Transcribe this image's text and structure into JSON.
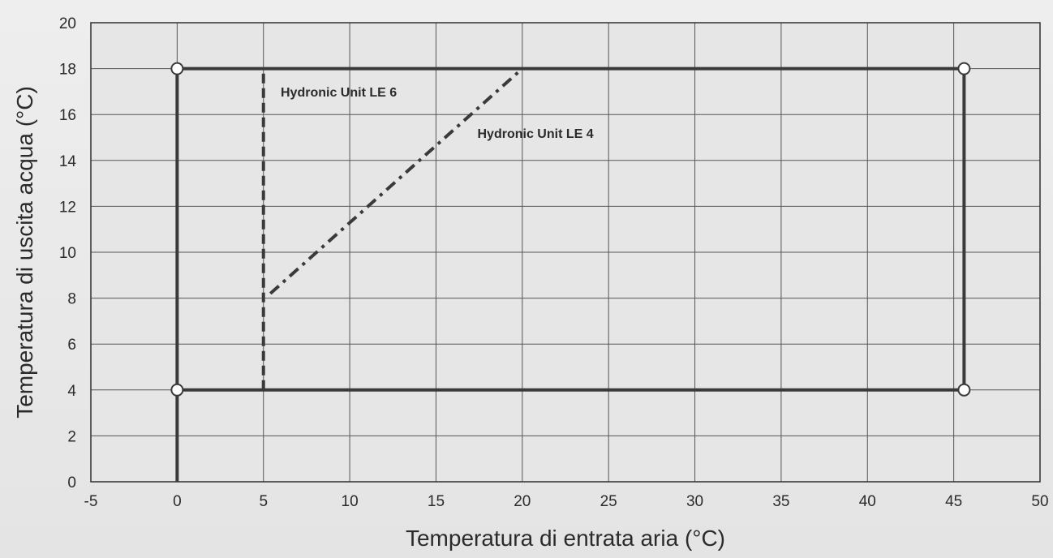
{
  "chart_data": {
    "type": "line",
    "xlabel": "Temperatura di entrata aria (°C)",
    "ylabel": "Temperatura di uscita acqua (°C)",
    "xlim": [
      -5,
      50
    ],
    "ylim": [
      0,
      20
    ],
    "x_ticks": [
      "-5",
      "0",
      "5",
      "10",
      "15",
      "20",
      "25",
      "30",
      "35",
      "40",
      "45",
      "50"
    ],
    "y_ticks": [
      "0",
      "2",
      "4",
      "6",
      "8",
      "10",
      "12",
      "14",
      "16",
      "18",
      "20"
    ],
    "x_tick_values": [
      -5,
      0,
      5,
      10,
      15,
      20,
      25,
      30,
      35,
      40,
      45,
      50
    ],
    "y_tick_values": [
      0,
      2,
      4,
      6,
      8,
      10,
      12,
      14,
      16,
      18,
      20
    ],
    "grid": true,
    "envelope": {
      "points": [
        [
          0,
          0
        ],
        [
          0,
          18
        ],
        [
          45.6,
          18
        ],
        [
          45.6,
          4
        ],
        [
          0,
          4
        ]
      ],
      "markers": [
        [
          0,
          18
        ],
        [
          45.6,
          18
        ],
        [
          0,
          4
        ],
        [
          45.6,
          4
        ]
      ],
      "color": "#3a3a3a"
    },
    "series": [
      {
        "name": "Hydronic Unit LE 6",
        "style": "dashed",
        "points": [
          [
            5,
            4
          ],
          [
            5,
            18
          ]
        ],
        "label_at": [
          6,
          17
        ]
      },
      {
        "name": "Hydronic Unit LE 4",
        "style": "dashdot",
        "points": [
          [
            5.4,
            8.2
          ],
          [
            20,
            18
          ]
        ],
        "label_at": [
          17.4,
          15.2
        ]
      }
    ]
  }
}
